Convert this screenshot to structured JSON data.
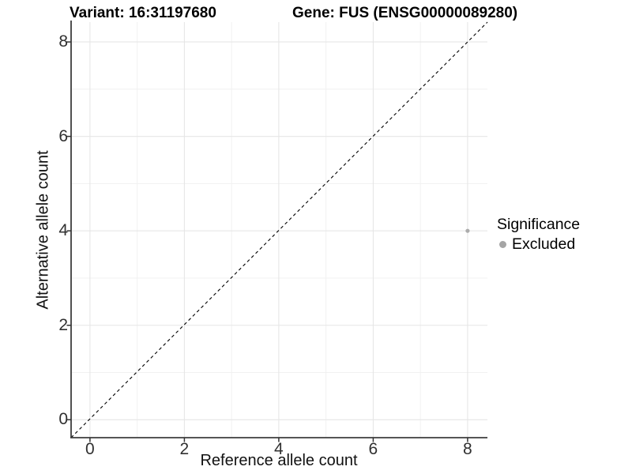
{
  "titles": {
    "variant": "Variant: 16:31197680",
    "gene": "Gene: FUS (ENSG00000089280)"
  },
  "axes": {
    "x_label": "Reference allele count",
    "y_label": "Alternative allele count"
  },
  "legend": {
    "title": "Significance",
    "items": [
      {
        "label": "Excluded",
        "color": "#a5a5a5"
      }
    ]
  },
  "chart_data": {
    "type": "scatter",
    "title": "Variant: 16:31197680   Gene: FUS (ENSG00000089280)",
    "xlabel": "Reference allele count",
    "ylabel": "Alternative allele count",
    "xlim": [
      -0.4,
      8.42
    ],
    "ylim": [
      -0.38,
      8.42
    ],
    "x_ticks": [
      0,
      2,
      4,
      6,
      8
    ],
    "y_ticks": [
      0,
      2,
      4,
      6,
      8
    ],
    "x_minor_ticks": [
      1,
      3,
      5,
      7
    ],
    "y_minor_ticks": [
      1,
      3,
      5,
      7
    ],
    "grid": true,
    "legend_position": "right",
    "series": [
      {
        "name": "Excluded",
        "color": "#a5a5a5",
        "points": [
          {
            "x": 8,
            "y": 4
          }
        ]
      }
    ],
    "reference_line": {
      "kind": "identity-diagonal",
      "style": "dashed",
      "from": [
        -0.4,
        -0.38
      ],
      "to": [
        8.42,
        8.42
      ],
      "color": "#000000"
    },
    "colors": {
      "background": "#ffffff",
      "major_grid": "#e6e6e6",
      "minor_grid": "#f1f1f1",
      "axis_line": "#3d3d3d",
      "tick_mark": "#333333",
      "point": "#acacac"
    }
  }
}
